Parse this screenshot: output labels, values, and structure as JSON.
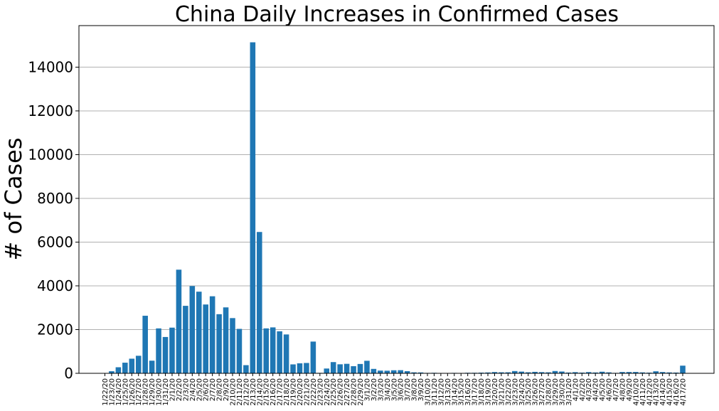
{
  "chart_data": {
    "type": "bar",
    "title": "China Daily Increases in Confirmed Cases",
    "xlabel": "",
    "ylabel": "# of Cases",
    "ylim": [
      0,
      15900
    ],
    "yticks": [
      0,
      2000,
      4000,
      6000,
      8000,
      10000,
      12000,
      14000
    ],
    "grid": "y",
    "bar_color": "#1f77b4",
    "categories": [
      "1/22/20",
      "1/23/20",
      "1/24/20",
      "1/25/20",
      "1/26/20",
      "1/27/20",
      "1/28/20",
      "1/29/20",
      "1/30/20",
      "1/31/20",
      "2/1/20",
      "2/2/20",
      "2/3/20",
      "2/4/20",
      "2/5/20",
      "2/6/20",
      "2/7/20",
      "2/8/20",
      "2/9/20",
      "2/10/20",
      "2/11/20",
      "2/12/20",
      "2/13/20",
      "2/14/20",
      "2/15/20",
      "2/16/20",
      "2/17/20",
      "2/18/20",
      "2/19/20",
      "2/20/20",
      "2/21/20",
      "2/22/20",
      "2/23/20",
      "2/24/20",
      "2/25/20",
      "2/26/20",
      "2/27/20",
      "2/28/20",
      "2/29/20",
      "3/1/20",
      "3/2/20",
      "3/3/20",
      "3/4/20",
      "3/5/20",
      "3/6/20",
      "3/7/20",
      "3/8/20",
      "3/9/20",
      "3/10/20",
      "3/11/20",
      "3/12/20",
      "3/13/20",
      "3/14/20",
      "3/15/20",
      "3/16/20",
      "3/17/20",
      "3/18/20",
      "3/19/20",
      "3/20/20",
      "3/21/20",
      "3/22/20",
      "3/23/20",
      "3/24/20",
      "3/25/20",
      "3/26/20",
      "3/27/20",
      "3/28/20",
      "3/29/20",
      "3/30/20",
      "3/31/20",
      "4/1/20",
      "4/2/20",
      "4/3/20",
      "4/4/20",
      "4/5/20",
      "4/6/20",
      "4/7/20",
      "4/8/20",
      "4/9/20",
      "4/10/20",
      "4/11/20",
      "4/12/20",
      "4/13/20",
      "4/14/20",
      "4/15/20",
      "4/16/20",
      "4/17/20"
    ],
    "values": [
      0,
      95,
      277,
      486,
      669,
      802,
      2632,
      578,
      2054,
      1661,
      2089,
      4739,
      3086,
      3991,
      3733,
      3147,
      3523,
      2704,
      3015,
      2525,
      2032,
      373,
      15136,
      6463,
      2055,
      2100,
      1921,
      1777,
      408,
      458,
      473,
      1451,
      21,
      219,
      513,
      412,
      434,
      327,
      427,
      573,
      202,
      125,
      119,
      139,
      143,
      99,
      44,
      40,
      19,
      24,
      15,
      11,
      20,
      16,
      25,
      25,
      32,
      39,
      58,
      46,
      46,
      103,
      78,
      47,
      67,
      54,
      45,
      105,
      82,
      36,
      53,
      33,
      56,
      38,
      73,
      44,
      20,
      59,
      59,
      61,
      42,
      31,
      92,
      58,
      41,
      34,
      350
    ]
  }
}
